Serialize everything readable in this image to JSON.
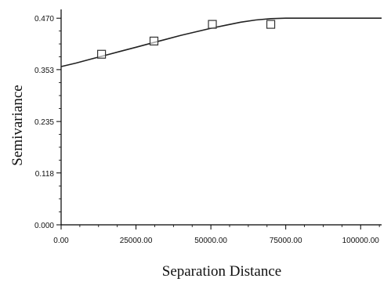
{
  "chart_data": {
    "type": "scatter",
    "xlabel": "Separation Distance",
    "ylabel": "Semivariance",
    "xlim": [
      0,
      107000
    ],
    "ylim": [
      0,
      0.49
    ],
    "x_ticks": [
      0,
      25000,
      50000,
      75000,
      100000
    ],
    "x_tick_labels": [
      "0.00",
      "25000.00",
      "50000.00",
      "75000.00",
      "100000.00"
    ],
    "y_ticks": [
      0,
      0.118,
      0.235,
      0.353,
      0.47
    ],
    "y_tick_labels": [
      "0.000",
      "0.118",
      "0.235",
      "0.353",
      "0.470"
    ],
    "grid": false,
    "series": [
      {
        "kind": "points",
        "marker": "square",
        "x": [
          13500,
          31000,
          50500,
          70000
        ],
        "y": [
          0.388,
          0.418,
          0.456,
          0.456
        ]
      },
      {
        "kind": "model-curve",
        "x": [
          0,
          5000,
          10000,
          15000,
          20000,
          25000,
          30000,
          35000,
          40000,
          45000,
          50000,
          55000,
          60000,
          65000,
          70000,
          75000,
          80000,
          85000,
          90000,
          95000,
          100000,
          105000,
          107000
        ],
        "y": [
          0.36,
          0.368,
          0.377,
          0.386,
          0.395,
          0.404,
          0.413,
          0.422,
          0.431,
          0.439,
          0.447,
          0.454,
          0.461,
          0.466,
          0.469,
          0.47,
          0.47,
          0.47,
          0.47,
          0.47,
          0.47,
          0.47,
          0.47
        ]
      }
    ]
  }
}
